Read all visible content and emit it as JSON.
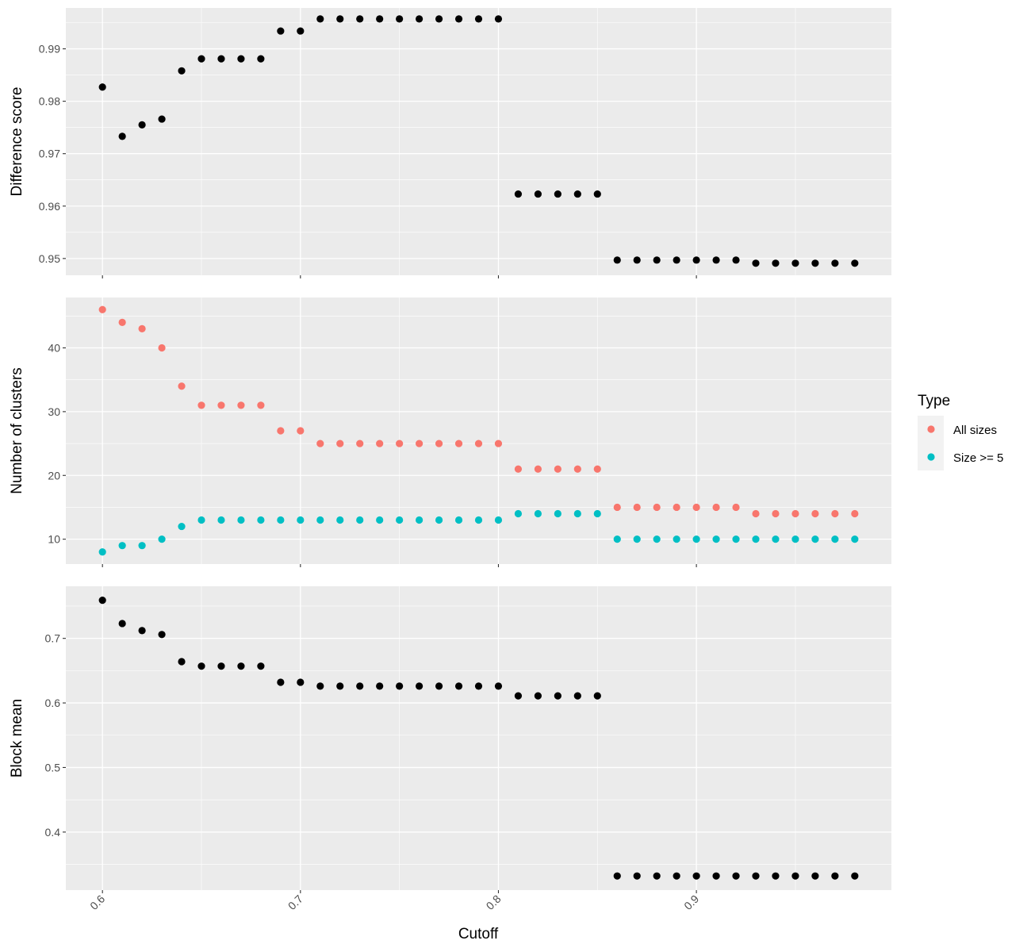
{
  "chart_data": {
    "type": "scatter",
    "xlabel": "Cutoff",
    "x": [
      0.6,
      0.61,
      0.62,
      0.63,
      0.64,
      0.65,
      0.66,
      0.67,
      0.68,
      0.69,
      0.7,
      0.71,
      0.72,
      0.73,
      0.74,
      0.75,
      0.76,
      0.77,
      0.78,
      0.79,
      0.8,
      0.81,
      0.82,
      0.83,
      0.84,
      0.85,
      0.86,
      0.87,
      0.88,
      0.89,
      0.9,
      0.91,
      0.92,
      0.93,
      0.94,
      0.95,
      0.96,
      0.97,
      0.98
    ],
    "xlim": [
      0.5815,
      0.9985
    ],
    "xticks": [
      0.6,
      0.7,
      0.8,
      0.9
    ],
    "xtick_labels": [
      "0.6",
      "0.7",
      "0.8",
      "0.9"
    ],
    "panels": [
      {
        "ylabel": "Difference score",
        "ylim": [
          0.9468,
          0.9978
        ],
        "yticks": [
          0.95,
          0.96,
          0.97,
          0.98,
          0.99
        ],
        "ytick_labels": [
          "0.95",
          "0.96",
          "0.97",
          "0.98",
          "0.99"
        ],
        "series": [
          {
            "color": "#000000",
            "values": [
              0.9827,
              0.9733,
              0.9755,
              0.9766,
              0.9858,
              0.9881,
              0.9881,
              0.9881,
              0.9881,
              0.9934,
              0.9934,
              0.9957,
              0.9957,
              0.9957,
              0.9957,
              0.9957,
              0.9957,
              0.9957,
              0.9957,
              0.9957,
              0.9957,
              0.9623,
              0.9623,
              0.9623,
              0.9623,
              0.9623,
              0.9497,
              0.9497,
              0.9497,
              0.9497,
              0.9497,
              0.9497,
              0.9497,
              0.9491,
              0.9491,
              0.9491,
              0.9491,
              0.9491,
              0.9491
            ]
          }
        ]
      },
      {
        "ylabel": "Number of clusters",
        "ylim": [
          6.1,
          47.9
        ],
        "yticks": [
          10,
          20,
          30,
          40
        ],
        "ytick_labels": [
          "10",
          "20",
          "30",
          "40"
        ],
        "series": [
          {
            "name": "All sizes",
            "color": "#F8766D",
            "values": [
              46,
              44,
              43,
              40,
              34,
              31,
              31,
              31,
              31,
              27,
              27,
              25,
              25,
              25,
              25,
              25,
              25,
              25,
              25,
              25,
              25,
              21,
              21,
              21,
              21,
              21,
              15,
              15,
              15,
              15,
              15,
              15,
              15,
              14,
              14,
              14,
              14,
              14,
              14
            ]
          },
          {
            "name": "Size >= 5",
            "color": "#00BFC4",
            "values": [
              8,
              9,
              9,
              10,
              12,
              13,
              13,
              13,
              13,
              13,
              13,
              13,
              13,
              13,
              13,
              13,
              13,
              13,
              13,
              13,
              13,
              14,
              14,
              14,
              14,
              14,
              10,
              10,
              10,
              10,
              10,
              10,
              10,
              10,
              10,
              10,
              10,
              10,
              10
            ]
          }
        ]
      },
      {
        "ylabel": "Block mean",
        "ylim": [
          0.3101,
          0.7807
        ],
        "yticks": [
          0.4,
          0.5,
          0.6,
          0.7
        ],
        "ytick_labels": [
          "0.4",
          "0.5",
          "0.6",
          "0.7"
        ],
        "series": [
          {
            "color": "#000000",
            "values": [
              0.759,
              0.723,
              0.712,
              0.706,
              0.664,
              0.657,
              0.657,
              0.657,
              0.657,
              0.632,
              0.632,
              0.626,
              0.626,
              0.626,
              0.626,
              0.626,
              0.626,
              0.626,
              0.626,
              0.626,
              0.626,
              0.611,
              0.611,
              0.611,
              0.611,
              0.611,
              0.332,
              0.332,
              0.332,
              0.332,
              0.332,
              0.332,
              0.332,
              0.332,
              0.332,
              0.332,
              0.332,
              0.332,
              0.332
            ]
          }
        ]
      }
    ],
    "legend": {
      "title": "Type",
      "position": "right",
      "entries": [
        {
          "label": "All sizes",
          "color": "#F8766D"
        },
        {
          "label": "Size >= 5",
          "color": "#00BFC4"
        }
      ]
    },
    "grid": true,
    "panel_background": "#EBEBEB"
  }
}
